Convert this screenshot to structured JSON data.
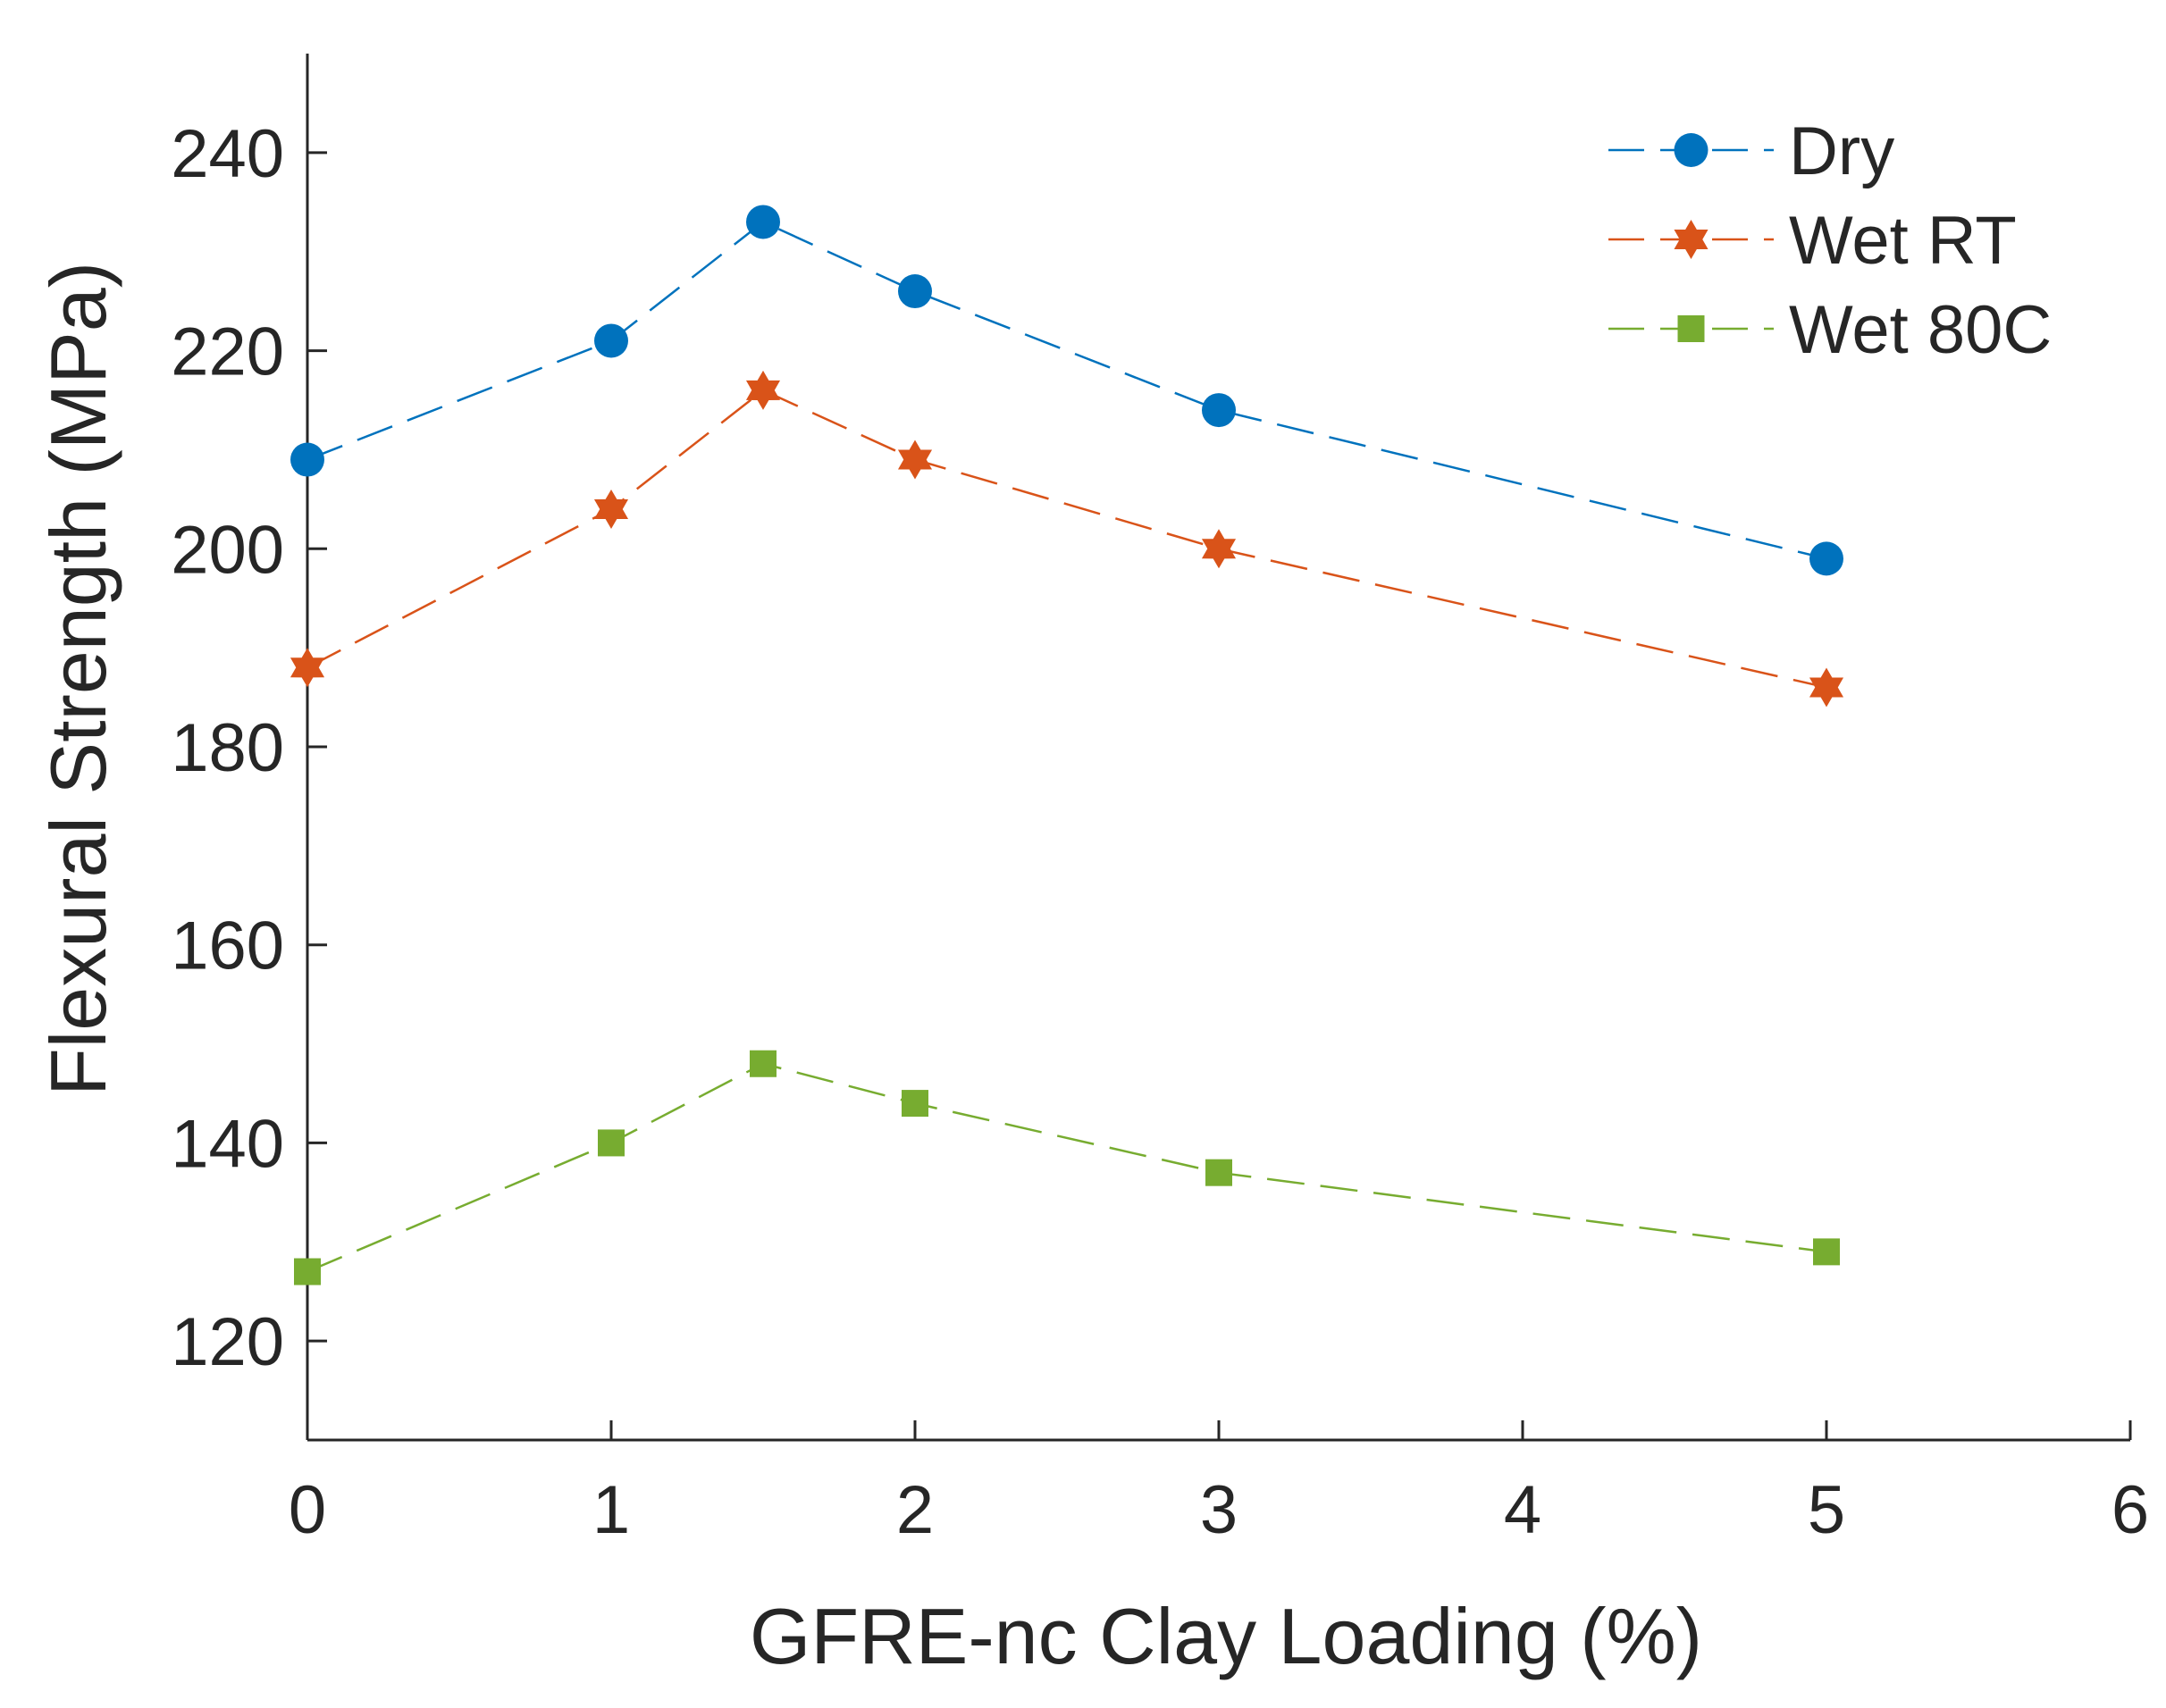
{
  "chart_data": {
    "type": "line",
    "title": "",
    "xlabel": "GFRE-nc Clay Loading (%)",
    "ylabel": "Flexural Strength (MPa)",
    "xlim": [
      0,
      6
    ],
    "ylim": [
      110,
      250
    ],
    "xticks": [
      0,
      1,
      2,
      3,
      4,
      5,
      6
    ],
    "yticks": [
      120,
      140,
      160,
      180,
      200,
      220,
      240
    ],
    "x": [
      0,
      1,
      1.5,
      2,
      3,
      5
    ],
    "grid": false,
    "legend_position": "top-right",
    "series": [
      {
        "name": "Dry",
        "marker": "circle",
        "color": "#0072BD",
        "values": [
          209,
          221,
          233,
          226,
          214,
          199
        ]
      },
      {
        "name": "Wet RT",
        "marker": "hexagram",
        "color": "#D95319",
        "values": [
          188,
          204,
          216,
          209,
          200,
          186
        ]
      },
      {
        "name": "Wet 80C",
        "marker": "square",
        "color": "#77AC30",
        "values": [
          127,
          140,
          148,
          144,
          137,
          129
        ]
      }
    ]
  }
}
